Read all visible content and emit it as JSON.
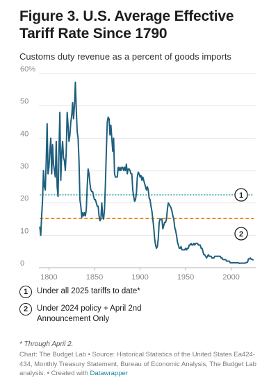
{
  "title": "Figure 3. U.S. Average Effective Tariff Rate Since 1790",
  "subtitle": "Customs duty revenue as a percent of goods imports",
  "colors": {
    "line": "#1f5f7e",
    "ref1": "#2aa6a6",
    "ref2": "#e8891c",
    "grid": "#e6e6e6",
    "axis_text": "#888888",
    "link": "#1d81a2"
  },
  "chart_data": {
    "type": "line",
    "x_ticks": [
      1800,
      1850,
      1900,
      1950,
      2000
    ],
    "y_ticks": [
      0,
      10,
      20,
      30,
      40,
      50,
      60
    ],
    "y_tick_labels": [
      "0",
      "10",
      "20",
      "30",
      "40",
      "50",
      "60%"
    ],
    "xlim": [
      1789,
      2027
    ],
    "ylim": [
      0,
      60
    ],
    "grid": true,
    "series": [
      {
        "values": [
          [
            1790,
            12.5
          ],
          [
            1791,
            10
          ],
          [
            1792,
            16
          ],
          [
            1793,
            21
          ],
          [
            1794,
            30
          ],
          [
            1795,
            25
          ],
          [
            1796,
            24
          ],
          [
            1797,
            33
          ],
          [
            1798,
            44.5
          ],
          [
            1799,
            29
          ],
          [
            1800,
            31
          ],
          [
            1801,
            36
          ],
          [
            1802,
            40
          ],
          [
            1803,
            29
          ],
          [
            1804,
            38
          ],
          [
            1805,
            32
          ],
          [
            1806,
            30
          ],
          [
            1807,
            28
          ],
          [
            1808,
            39
          ],
          [
            1809,
            25
          ],
          [
            1810,
            22
          ],
          [
            1811,
            36
          ],
          [
            1812,
            48
          ],
          [
            1813,
            27
          ],
          [
            1814,
            35
          ],
          [
            1815,
            39
          ],
          [
            1816,
            34
          ],
          [
            1817,
            33
          ],
          [
            1818,
            30
          ],
          [
            1819,
            36
          ],
          [
            1820,
            48
          ],
          [
            1821,
            44
          ],
          [
            1822,
            39
          ],
          [
            1823,
            41
          ],
          [
            1824,
            45
          ],
          [
            1825,
            47
          ],
          [
            1826,
            51
          ],
          [
            1827,
            46
          ],
          [
            1828,
            50
          ],
          [
            1829,
            57.3
          ],
          [
            1830,
            49
          ],
          [
            1831,
            42
          ],
          [
            1832,
            40
          ],
          [
            1833,
            33
          ],
          [
            1834,
            21
          ],
          [
            1835,
            19
          ],
          [
            1836,
            15.5
          ],
          [
            1837,
            17
          ],
          [
            1838,
            16
          ],
          [
            1839,
            17
          ],
          [
            1840,
            16
          ],
          [
            1841,
            18
          ],
          [
            1842,
            25
          ],
          [
            1843,
            30.5
          ],
          [
            1844,
            29
          ],
          [
            1845,
            26
          ],
          [
            1846,
            24
          ],
          [
            1847,
            23.5
          ],
          [
            1848,
            23.5
          ],
          [
            1849,
            22
          ],
          [
            1850,
            21
          ],
          [
            1851,
            21
          ],
          [
            1852,
            20
          ],
          [
            1853,
            19
          ],
          [
            1854,
            19
          ],
          [
            1855,
            16
          ],
          [
            1856,
            14.5
          ],
          [
            1857,
            15
          ],
          [
            1858,
            20
          ],
          [
            1859,
            16
          ],
          [
            1860,
            15
          ],
          [
            1861,
            18
          ],
          [
            1862,
            26
          ],
          [
            1863,
            36
          ],
          [
            1864,
            45
          ],
          [
            1865,
            46.5
          ],
          [
            1866,
            46
          ],
          [
            1867,
            41
          ],
          [
            1868,
            44
          ],
          [
            1869,
            40
          ],
          [
            1870,
            36
          ],
          [
            1871,
            40
          ],
          [
            1872,
            29
          ],
          [
            1873,
            28
          ],
          [
            1874,
            28
          ],
          [
            1875,
            28
          ],
          [
            1876,
            31
          ],
          [
            1877,
            30
          ],
          [
            1878,
            31
          ],
          [
            1879,
            30
          ],
          [
            1880,
            31
          ],
          [
            1881,
            31
          ],
          [
            1882,
            30
          ],
          [
            1883,
            31
          ],
          [
            1884,
            30
          ],
          [
            1885,
            32
          ],
          [
            1886,
            29
          ],
          [
            1887,
            30.5
          ],
          [
            1888,
            30.5
          ],
          [
            1889,
            30
          ],
          [
            1890,
            29
          ],
          [
            1891,
            29
          ],
          [
            1892,
            24
          ],
          [
            1893,
            22
          ],
          [
            1894,
            20.5
          ],
          [
            1895,
            21
          ],
          [
            1896,
            23
          ],
          [
            1897,
            28
          ],
          [
            1898,
            29.5
          ],
          [
            1899,
            29
          ],
          [
            1900,
            28
          ],
          [
            1901,
            28.5
          ],
          [
            1902,
            27
          ],
          [
            1903,
            28
          ],
          [
            1904,
            27
          ],
          [
            1905,
            26
          ],
          [
            1906,
            25
          ],
          [
            1907,
            24
          ],
          [
            1908,
            25
          ],
          [
            1909,
            24
          ],
          [
            1910,
            21.5
          ],
          [
            1911,
            21
          ],
          [
            1912,
            19
          ],
          [
            1913,
            17.5
          ],
          [
            1914,
            15
          ],
          [
            1915,
            12.5
          ],
          [
            1916,
            9
          ],
          [
            1917,
            7
          ],
          [
            1918,
            6
          ],
          [
            1919,
            6.5
          ],
          [
            1920,
            9
          ],
          [
            1921,
            14
          ],
          [
            1922,
            15
          ],
          [
            1923,
            15
          ],
          [
            1924,
            15
          ],
          [
            1925,
            12
          ],
          [
            1926,
            13
          ],
          [
            1927,
            14
          ],
          [
            1928,
            14
          ],
          [
            1929,
            15
          ],
          [
            1930,
            18
          ],
          [
            1931,
            20
          ],
          [
            1932,
            19.5
          ],
          [
            1933,
            19
          ],
          [
            1934,
            18.5
          ],
          [
            1935,
            17.5
          ],
          [
            1936,
            16
          ],
          [
            1937,
            15
          ],
          [
            1938,
            12.5
          ],
          [
            1939,
            11.5
          ],
          [
            1940,
            10
          ],
          [
            1941,
            8
          ],
          [
            1942,
            7
          ],
          [
            1943,
            6
          ],
          [
            1944,
            6
          ],
          [
            1945,
            6.5
          ],
          [
            1946,
            5.5
          ],
          [
            1947,
            5.5
          ],
          [
            1948,
            5.5
          ],
          [
            1949,
            5.5
          ],
          [
            1950,
            6
          ],
          [
            1951,
            5.5
          ],
          [
            1952,
            6
          ],
          [
            1953,
            6
          ],
          [
            1954,
            7
          ],
          [
            1955,
            7
          ],
          [
            1956,
            7.5
          ],
          [
            1957,
            7
          ],
          [
            1958,
            7
          ],
          [
            1959,
            7.5
          ],
          [
            1960,
            7
          ],
          [
            1961,
            7.5
          ],
          [
            1962,
            7.5
          ],
          [
            1963,
            7.5
          ],
          [
            1964,
            7
          ],
          [
            1965,
            7
          ],
          [
            1966,
            7
          ],
          [
            1967,
            6
          ],
          [
            1968,
            6
          ],
          [
            1969,
            5
          ],
          [
            1970,
            4
          ],
          [
            1971,
            4
          ],
          [
            1972,
            3.5
          ],
          [
            1973,
            3
          ],
          [
            1974,
            3.5
          ],
          [
            1975,
            4
          ],
          [
            1976,
            3.5
          ],
          [
            1977,
            3.5
          ],
          [
            1978,
            3.5
          ],
          [
            1979,
            3
          ],
          [
            1980,
            3
          ],
          [
            1981,
            3
          ],
          [
            1982,
            3.5
          ],
          [
            1983,
            3.5
          ],
          [
            1984,
            3.5
          ],
          [
            1985,
            3.5
          ],
          [
            1986,
            3.5
          ],
          [
            1987,
            3.5
          ],
          [
            1988,
            3.5
          ],
          [
            1989,
            3
          ],
          [
            1990,
            3
          ],
          [
            1991,
            2.5
          ],
          [
            1992,
            2.5
          ],
          [
            1993,
            2.5
          ],
          [
            1994,
            2.5
          ],
          [
            1995,
            2
          ],
          [
            1996,
            2
          ],
          [
            1997,
            2
          ],
          [
            1998,
            2
          ],
          [
            1999,
            1.5
          ],
          [
            2000,
            1.5
          ],
          [
            2001,
            1.5
          ],
          [
            2002,
            1.5
          ],
          [
            2003,
            1.5
          ],
          [
            2004,
            1.5
          ],
          [
            2005,
            1.5
          ],
          [
            2006,
            1.5
          ],
          [
            2007,
            1.5
          ],
          [
            2008,
            1.5
          ],
          [
            2009,
            1.3
          ],
          [
            2010,
            1.4
          ],
          [
            2011,
            1.4
          ],
          [
            2012,
            1.4
          ],
          [
            2013,
            1.4
          ],
          [
            2014,
            1.4
          ],
          [
            2015,
            1.4
          ],
          [
            2016,
            1.5
          ],
          [
            2017,
            1.6
          ],
          [
            2018,
            1.7
          ],
          [
            2019,
            2.7
          ],
          [
            2020,
            2.7
          ],
          [
            2021,
            3
          ],
          [
            2022,
            2.6
          ],
          [
            2023,
            2.6
          ],
          [
            2024,
            2.4
          ]
        ]
      }
    ],
    "reference_lines": [
      {
        "marker": "1",
        "value": 22.5,
        "x_start": 1790,
        "x_end": 2025,
        "color": "#2aa6a6"
      },
      {
        "marker": "2",
        "value": 15.2,
        "x_start": 1790,
        "x_end": 2025,
        "color": "#e8891c"
      }
    ],
    "marker_labels": [
      {
        "marker": "1",
        "x": 2011,
        "y": 22.5
      },
      {
        "marker": "2",
        "x": 2011,
        "y": 10.5
      }
    ]
  },
  "legend": [
    {
      "marker": "1",
      "text": "Under all 2025 tariffs to date*"
    },
    {
      "marker": "2",
      "text": "Under 2024 policy + April 2nd Announcement Only"
    }
  ],
  "footnote": "* Through April 2.",
  "source": {
    "text": "Chart: The Budget Lab • Source: Historical Statistics of the United States Ea424-434, Monthly Treasury Statement, Bureau of Economic Analysis, The Budget Lab analysis. • Created with ",
    "link": "Datawrapper"
  }
}
